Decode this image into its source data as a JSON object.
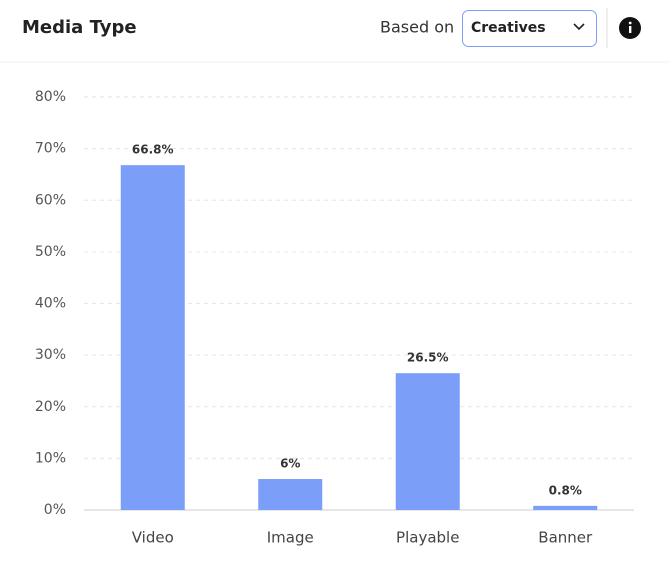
{
  "header": {
    "based_on": "Based on",
    "dropdown": "Creatives"
  },
  "chart_data": {
    "type": "bar",
    "title": "Media Type",
    "categories": [
      "Video",
      "Image",
      "Playable",
      "Banner"
    ],
    "values": [
      66.8,
      6,
      26.5,
      0.8
    ],
    "value_labels": [
      "66.8%",
      "6%",
      "26.5%",
      "0.8%"
    ],
    "color": "#7b9ef8",
    "ylim": [
      0,
      80
    ],
    "yticks": [
      {
        "value": 0,
        "label": "0%"
      },
      {
        "value": 10,
        "label": "10%"
      },
      {
        "value": 20,
        "label": "20%"
      },
      {
        "value": 30,
        "label": "30%"
      },
      {
        "value": 40,
        "label": "40%"
      },
      {
        "value": 50,
        "label": "50%"
      },
      {
        "value": 60,
        "label": "60%"
      },
      {
        "value": 70,
        "label": "70%"
      },
      {
        "value": 80,
        "label": "80%"
      }
    ],
    "grid": true
  }
}
